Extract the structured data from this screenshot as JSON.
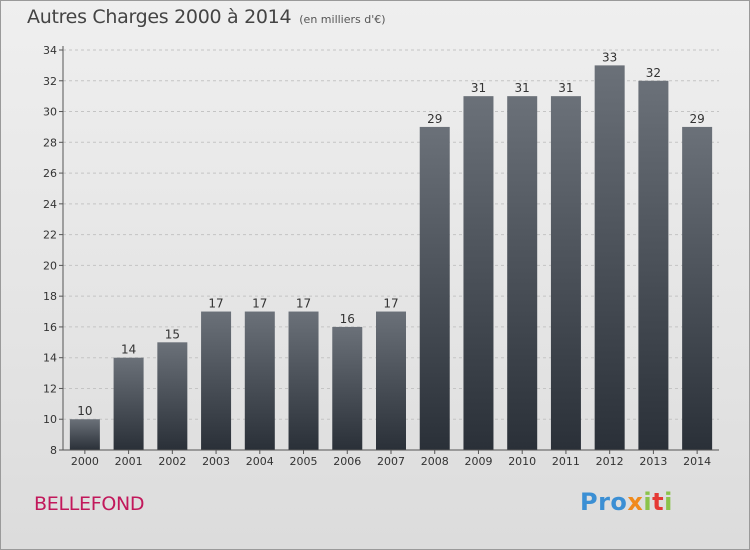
{
  "header": {
    "title": "Autres Charges 2000 à 2014",
    "unit": "(en milliers d'€)"
  },
  "footer": {
    "town": "BELLEFOND",
    "logo_text": "Proxiti"
  },
  "colors": {
    "bar_top": "#6b7179",
    "bar_bottom": "#2a3038",
    "town": "#c2185b"
  },
  "chart_data": {
    "type": "bar",
    "title": "Autres Charges 2000 à 2014",
    "subtitle": "(en milliers d'€)",
    "xlabel": "",
    "ylabel": "",
    "categories": [
      "2000",
      "2001",
      "2002",
      "2003",
      "2004",
      "2005",
      "2006",
      "2007",
      "2008",
      "2009",
      "2010",
      "2011",
      "2012",
      "2013",
      "2014"
    ],
    "values": [
      10,
      14,
      15,
      17,
      17,
      17,
      16,
      17,
      29,
      31,
      31,
      31,
      33,
      32,
      29
    ],
    "ylim": [
      8,
      34
    ],
    "yticks": [
      8,
      10,
      12,
      14,
      16,
      18,
      20,
      22,
      24,
      26,
      28,
      30,
      32,
      34
    ],
    "grid": "horizontal dashed",
    "data_labels": true
  }
}
